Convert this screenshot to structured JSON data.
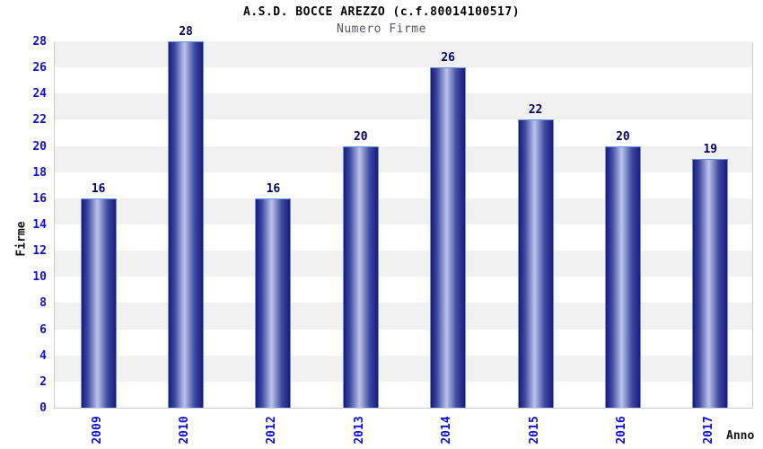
{
  "chart_data": {
    "type": "bar",
    "title": "A.S.D. BOCCE AREZZO (c.f.80014100517)",
    "subtitle": "Numero Firme",
    "xlabel": "Anno",
    "ylabel": "Firme",
    "categories": [
      "2009",
      "2010",
      "2012",
      "2013",
      "2014",
      "2015",
      "2016",
      "2017"
    ],
    "values": [
      16,
      28,
      16,
      20,
      26,
      22,
      20,
      19
    ],
    "ylim": [
      0,
      28
    ],
    "ytick_step": 2,
    "ytick_labels": [
      "0",
      "2",
      "4",
      "6",
      "8",
      "10",
      "12",
      "14",
      "16",
      "18",
      "20",
      "22",
      "24",
      "26",
      "28"
    ],
    "grid_bands": "alternating horizontal bands every 2 units",
    "legend_position": "none",
    "colors": {
      "bar_gradient_edge": "#1a1a7c",
      "bar_gradient_quarter": "#3e49a0",
      "bar_gradient_mid": "#bcc4ec",
      "bar_border": "#6d92ee",
      "tick_label": "#0d0de0",
      "value_label": "#000066",
      "band_fill": "#f1f1f1",
      "plot_border": "#cccccc",
      "title_color": "#000000",
      "subtitle_color": "#555566",
      "axis_label_color": "#111111"
    }
  }
}
